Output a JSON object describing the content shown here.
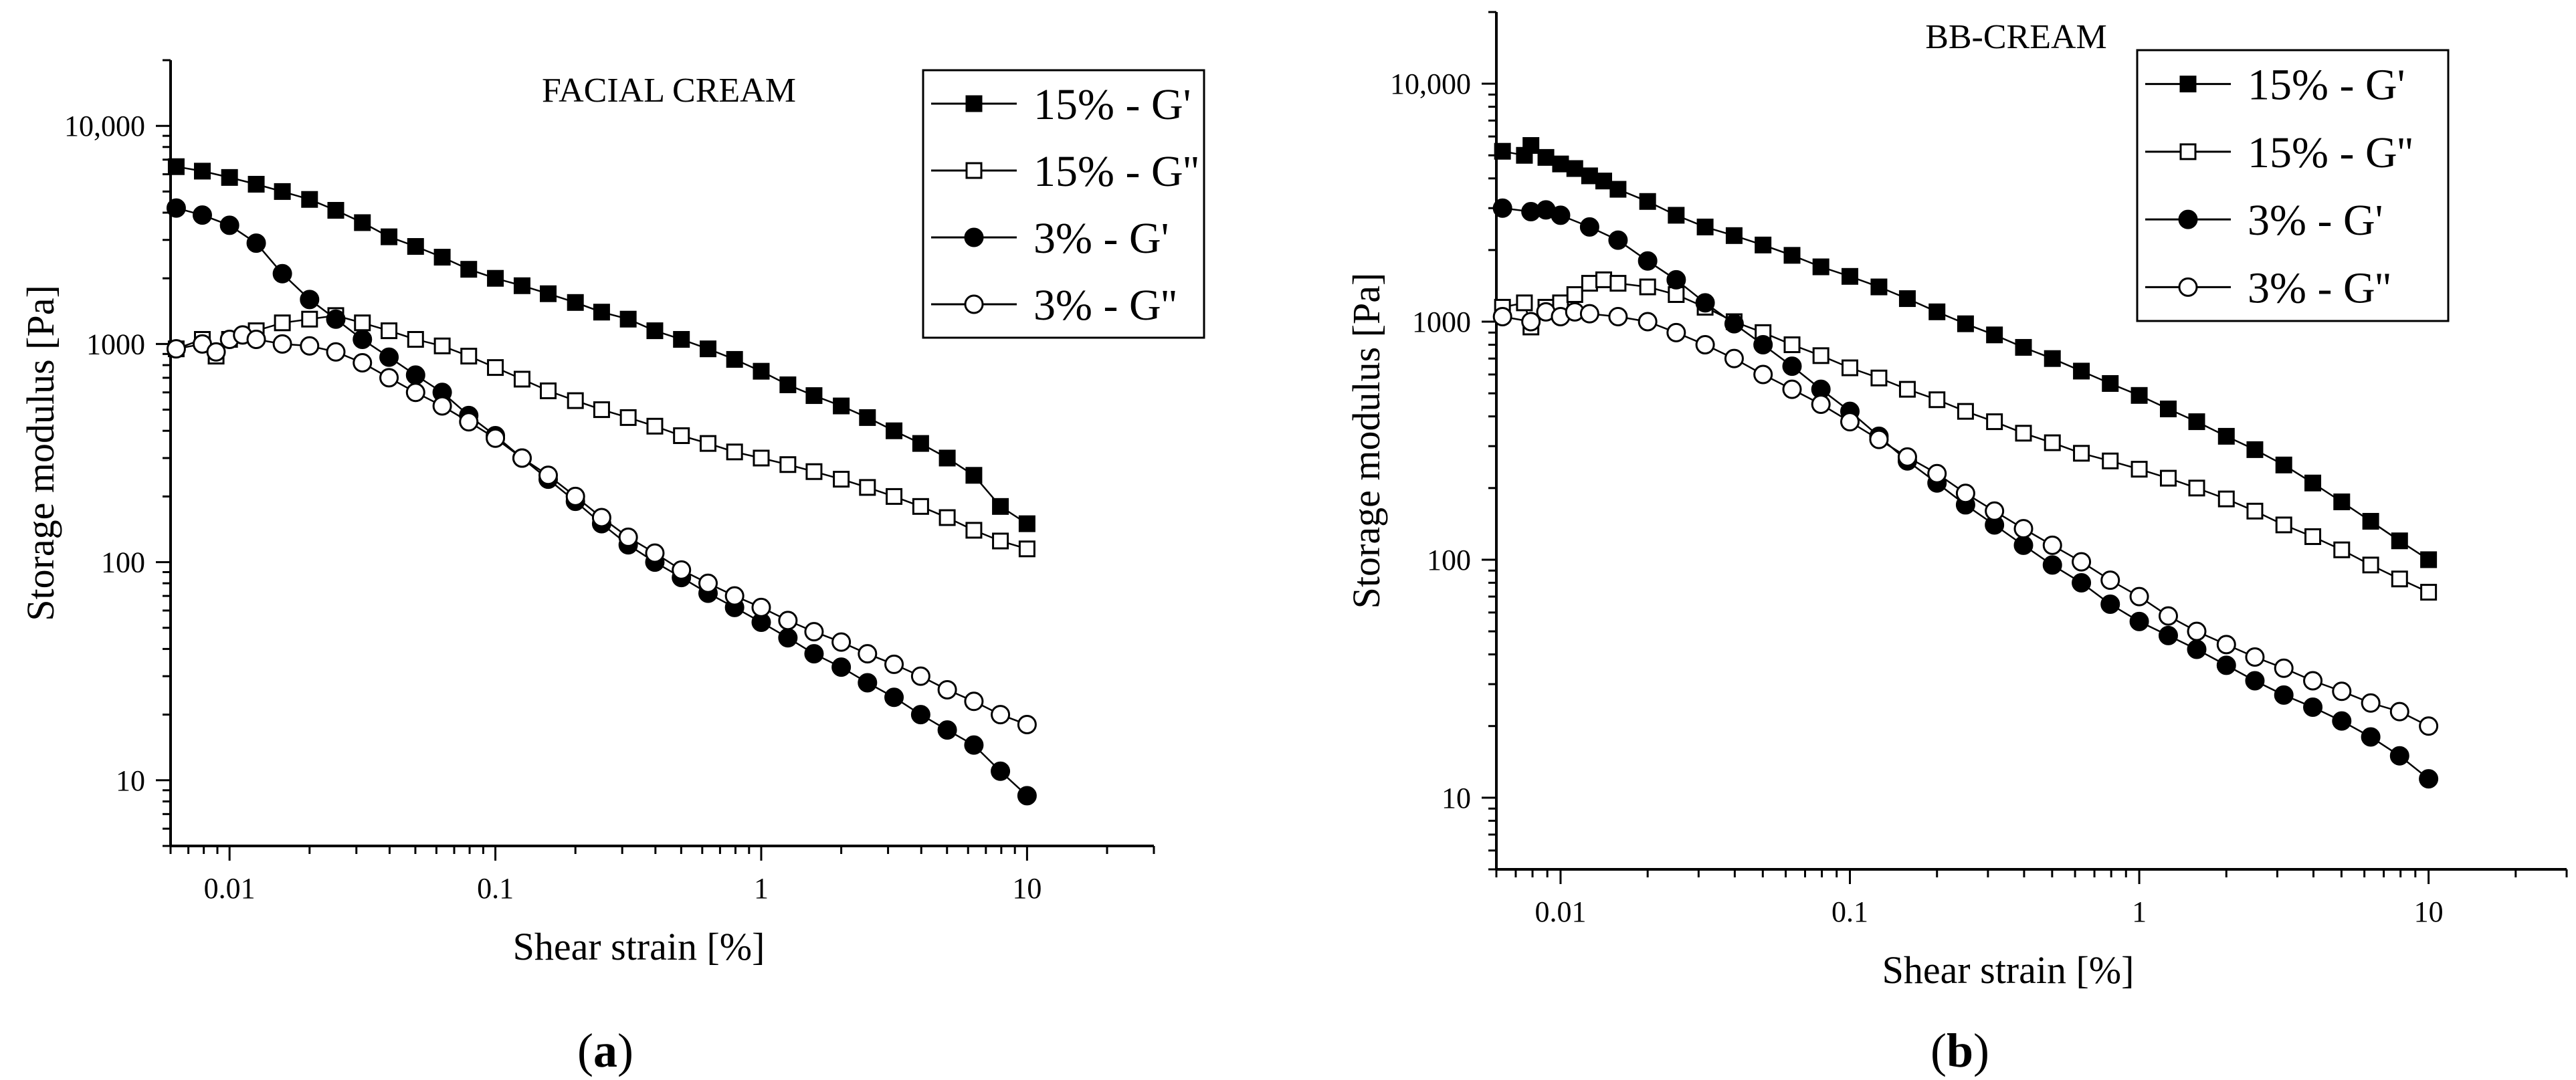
{
  "chart_data": [
    {
      "type": "scatter",
      "title": "FACIAL CREAM",
      "xlabel": "Shear strain [%]",
      "ylabel": "Storage modulus [Pa]",
      "xscale": "log",
      "yscale": "log",
      "xlim": [
        0.006,
        30
      ],
      "ylim": [
        5,
        20000
      ],
      "xticks": [
        0.01,
        0.1,
        1,
        10
      ],
      "xtick_labels": [
        "0.01",
        "0.1",
        "1",
        "10"
      ],
      "yticks": [
        10,
        100,
        1000,
        10000
      ],
      "ytick_labels": [
        "10",
        "100",
        "1000",
        "10,000"
      ],
      "legend_position": "top-right",
      "panel_label": "a",
      "series": [
        {
          "name": "15% - G'",
          "marker": "square-filled",
          "x": [
            0.0063,
            0.0079,
            0.01,
            0.0126,
            0.0158,
            0.02,
            0.0251,
            0.0316,
            0.0398,
            0.0501,
            0.0631,
            0.0794,
            0.1,
            0.126,
            0.158,
            0.2,
            0.251,
            0.316,
            0.398,
            0.501,
            0.631,
            0.794,
            1,
            1.26,
            1.58,
            2,
            2.51,
            3.16,
            3.98,
            5.01,
            6.31,
            7.94,
            10
          ],
          "y": [
            6500,
            6200,
            5800,
            5400,
            5000,
            4600,
            4100,
            3600,
            3100,
            2800,
            2500,
            2200,
            2000,
            1850,
            1700,
            1550,
            1400,
            1300,
            1150,
            1050,
            950,
            850,
            750,
            650,
            580,
            520,
            460,
            400,
            350,
            300,
            250,
            180,
            150
          ]
        },
        {
          "name": "15% - G''",
          "marker": "square-open",
          "x": [
            0.0063,
            0.0079,
            0.0089,
            0.01,
            0.0126,
            0.0158,
            0.02,
            0.0251,
            0.0316,
            0.0398,
            0.0501,
            0.0631,
            0.0794,
            0.1,
            0.126,
            0.158,
            0.2,
            0.251,
            0.316,
            0.398,
            0.501,
            0.631,
            0.794,
            1,
            1.26,
            1.58,
            2,
            2.51,
            3.16,
            3.98,
            5.01,
            6.31,
            7.94,
            10
          ],
          "y": [
            950,
            1050,
            880,
            1050,
            1150,
            1250,
            1300,
            1350,
            1250,
            1150,
            1050,
            980,
            880,
            780,
            690,
            610,
            550,
            500,
            460,
            420,
            380,
            350,
            320,
            300,
            280,
            260,
            240,
            220,
            200,
            180,
            160,
            140,
            125,
            115
          ]
        },
        {
          "name": "3% - G'",
          "marker": "circle-filled",
          "x": [
            0.0063,
            0.0079,
            0.01,
            0.0126,
            0.0158,
            0.02,
            0.0251,
            0.0316,
            0.0398,
            0.0501,
            0.0631,
            0.0794,
            0.1,
            0.126,
            0.158,
            0.2,
            0.251,
            0.316,
            0.398,
            0.501,
            0.631,
            0.794,
            1,
            1.26,
            1.58,
            2,
            2.51,
            3.16,
            3.98,
            5.01,
            6.31,
            7.94,
            10
          ],
          "y": [
            4200,
            3900,
            3500,
            2900,
            2100,
            1600,
            1300,
            1050,
            870,
            720,
            600,
            470,
            380,
            300,
            240,
            190,
            150,
            120,
            100,
            85,
            72,
            62,
            53,
            45,
            38,
            33,
            28,
            24,
            20,
            17,
            14.5,
            11,
            8.5
          ]
        },
        {
          "name": "3% - G''",
          "marker": "circle-open",
          "x": [
            0.0063,
            0.0079,
            0.0089,
            0.01,
            0.0112,
            0.0126,
            0.0158,
            0.02,
            0.0251,
            0.0316,
            0.0398,
            0.0501,
            0.0631,
            0.0794,
            0.1,
            0.126,
            0.158,
            0.2,
            0.251,
            0.316,
            0.398,
            0.501,
            0.631,
            0.794,
            1,
            1.26,
            1.58,
            2,
            2.51,
            3.16,
            3.98,
            5.01,
            6.31,
            7.94,
            10
          ],
          "y": [
            950,
            1000,
            920,
            1050,
            1100,
            1050,
            1000,
            980,
            920,
            820,
            700,
            600,
            520,
            440,
            370,
            300,
            250,
            200,
            160,
            130,
            110,
            92,
            80,
            70,
            62,
            54,
            48,
            43,
            38,
            34,
            30,
            26,
            23,
            20,
            18
          ]
        }
      ]
    },
    {
      "type": "scatter",
      "title": "BB-CREAM",
      "xlabel": "Shear strain [%]",
      "ylabel": "Storage modulus [Pa]",
      "xscale": "log",
      "yscale": "log",
      "xlim": [
        0.006,
        30
      ],
      "ylim": [
        5,
        20000
      ],
      "xticks": [
        0.01,
        0.1,
        1,
        10
      ],
      "xtick_labels": [
        "0.01",
        "0.1",
        "1",
        "10"
      ],
      "yticks": [
        10,
        100,
        1000,
        10000
      ],
      "ytick_labels": [
        "10",
        "100",
        "1000",
        "10,000"
      ],
      "legend_position": "top-right",
      "panel_label": "b",
      "series": [
        {
          "name": "15% - G'",
          "marker": "square-filled",
          "x": [
            0.0063,
            0.0075,
            0.0079,
            0.0089,
            0.01,
            0.0112,
            0.0126,
            0.0141,
            0.0158,
            0.02,
            0.0251,
            0.0316,
            0.0398,
            0.0501,
            0.0631,
            0.0794,
            0.1,
            0.126,
            0.158,
            0.2,
            0.251,
            0.316,
            0.398,
            0.501,
            0.631,
            0.794,
            1,
            1.26,
            1.58,
            2,
            2.51,
            3.16,
            3.98,
            5.01,
            6.31,
            7.94,
            10
          ],
          "y": [
            5200,
            5000,
            5500,
            4900,
            4600,
            4400,
            4100,
            3900,
            3600,
            3200,
            2800,
            2500,
            2300,
            2100,
            1900,
            1700,
            1550,
            1400,
            1250,
            1100,
            980,
            880,
            780,
            700,
            620,
            550,
            490,
            430,
            380,
            330,
            290,
            250,
            210,
            175,
            145,
            120,
            100
          ]
        },
        {
          "name": "15% - G''",
          "marker": "square-open",
          "x": [
            0.0063,
            0.0075,
            0.0079,
            0.0089,
            0.01,
            0.0112,
            0.0126,
            0.0141,
            0.0158,
            0.02,
            0.0251,
            0.0316,
            0.0398,
            0.0501,
            0.0631,
            0.0794,
            0.1,
            0.126,
            0.158,
            0.2,
            0.251,
            0.316,
            0.398,
            0.501,
            0.631,
            0.794,
            1,
            1.26,
            1.58,
            2,
            2.51,
            3.16,
            3.98,
            5.01,
            6.31,
            7.94,
            10
          ],
          "y": [
            1150,
            1200,
            950,
            1150,
            1200,
            1300,
            1450,
            1500,
            1450,
            1400,
            1300,
            1150,
            1000,
            900,
            800,
            720,
            640,
            580,
            520,
            470,
            420,
            380,
            340,
            310,
            280,
            260,
            240,
            220,
            200,
            180,
            160,
            140,
            125,
            110,
            95,
            83,
            73
          ]
        },
        {
          "name": "3% - G'",
          "marker": "circle-filled",
          "x": [
            0.0063,
            0.0079,
            0.0089,
            0.01,
            0.0126,
            0.0158,
            0.02,
            0.0251,
            0.0316,
            0.0398,
            0.0501,
            0.0631,
            0.0794,
            0.1,
            0.126,
            0.158,
            0.2,
            0.251,
            0.316,
            0.398,
            0.501,
            0.631,
            0.794,
            1,
            1.26,
            1.58,
            2,
            2.51,
            3.16,
            3.98,
            5.01,
            6.31,
            7.94,
            10
          ],
          "y": [
            3000,
            2900,
            2950,
            2800,
            2500,
            2200,
            1800,
            1500,
            1200,
            980,
            800,
            650,
            520,
            420,
            330,
            260,
            210,
            170,
            140,
            115,
            95,
            80,
            65,
            55,
            48,
            42,
            36,
            31,
            27,
            24,
            21,
            18,
            15,
            12
          ]
        },
        {
          "name": "3% - G''",
          "marker": "circle-open",
          "x": [
            0.0063,
            0.0079,
            0.0089,
            0.01,
            0.0112,
            0.0126,
            0.0158,
            0.02,
            0.0251,
            0.0316,
            0.0398,
            0.0501,
            0.0631,
            0.0794,
            0.1,
            0.126,
            0.158,
            0.2,
            0.251,
            0.316,
            0.398,
            0.501,
            0.631,
            0.794,
            1,
            1.26,
            1.58,
            2,
            2.51,
            3.16,
            3.98,
            5.01,
            6.31,
            7.94,
            10
          ],
          "y": [
            1050,
            1000,
            1100,
            1050,
            1100,
            1080,
            1050,
            1000,
            900,
            800,
            700,
            600,
            520,
            450,
            380,
            320,
            270,
            230,
            190,
            160,
            135,
            115,
            98,
            82,
            70,
            58,
            50,
            44,
            39,
            35,
            31,
            28,
            25,
            23,
            20
          ]
        }
      ]
    }
  ]
}
